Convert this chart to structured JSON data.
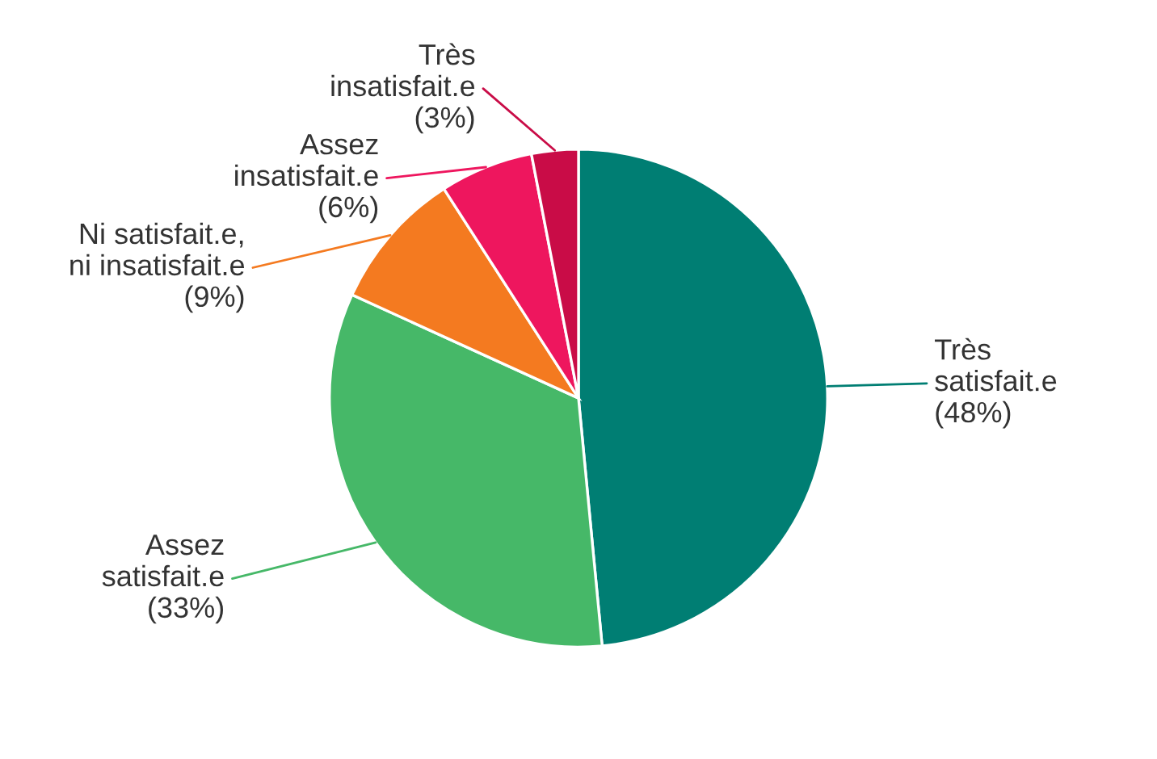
{
  "chart_data": {
    "type": "pie",
    "categories": [
      "Très satisfait.e",
      "Assez satisfait.e",
      "Ni satisfait.e, ni insatisfait.e",
      "Assez insatisfait.e",
      "Très insatisfait.e"
    ],
    "values": [
      48,
      33,
      9,
      6,
      3
    ],
    "colors": [
      "#007e73",
      "#46b868",
      "#f47a20",
      "#ee165e",
      "#c90c47"
    ],
    "value_labels": [
      "(48%)",
      "(33%)",
      "(9%)",
      "(6%)",
      "(3%)"
    ],
    "legend": false
  }
}
